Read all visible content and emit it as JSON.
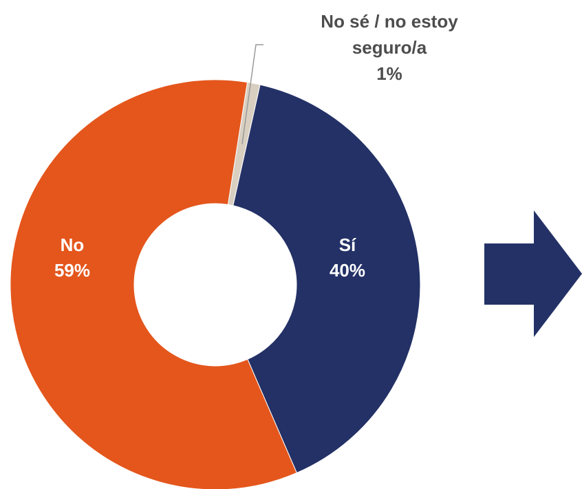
{
  "chart_data": {
    "type": "pie",
    "donut": true,
    "slices": [
      {
        "name": "Sí",
        "percent_label": "40%",
        "value": 40,
        "color": "#233166",
        "label_color": "#ffffff"
      },
      {
        "name": "No",
        "percent_label": "59%",
        "value": 59,
        "color": "#E4561C",
        "label_color": "#ffffff"
      },
      {
        "name_line1": "No sé / no estoy",
        "name_line2": "seguro/a",
        "percent_label": "1%",
        "value": 1,
        "color": "#D9CFC1",
        "label_color": "#4D4D4D"
      }
    ],
    "arrow": {
      "color": "#233166",
      "direction": "right"
    },
    "colors": {
      "leader_line": "#9A9A9A",
      "background": "#ffffff"
    }
  }
}
